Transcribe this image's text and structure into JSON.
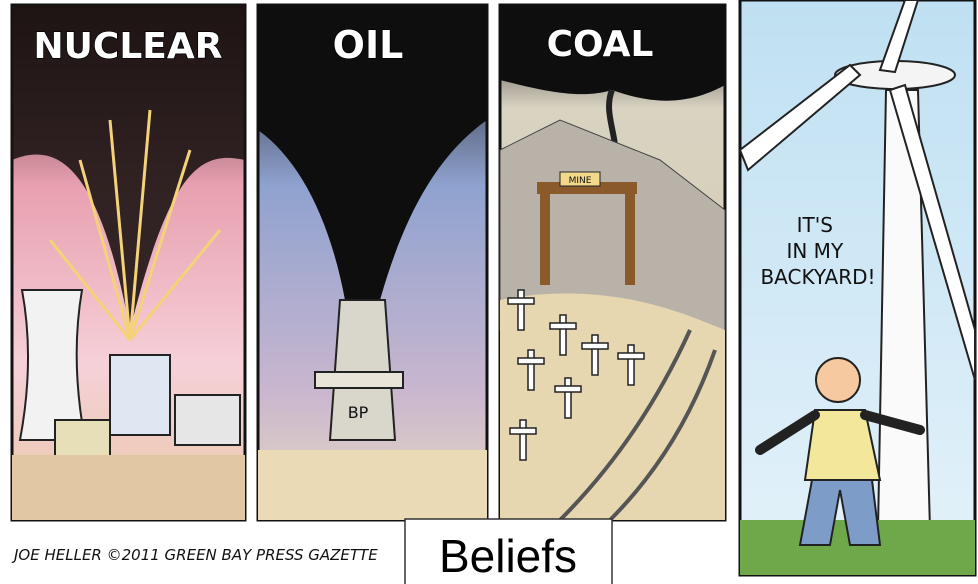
{
  "panels": [
    {
      "title": "NUCLEAR"
    },
    {
      "title": "OIL",
      "label": "BP"
    },
    {
      "title": "COAL",
      "label": "MINE"
    },
    {
      "speech": [
        "IT'S",
        "IN MY",
        "BACKYARD!"
      ]
    }
  ],
  "signature": "JOE HELLER ©2011 GREEN BAY PRESS GAZETTE",
  "caption": "Beliefs"
}
